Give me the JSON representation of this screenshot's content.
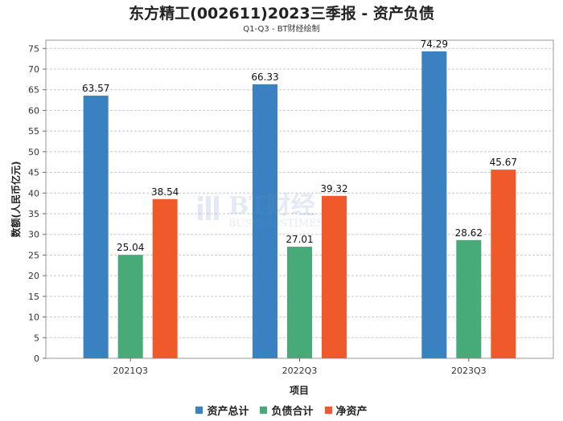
{
  "chart_data": {
    "type": "bar",
    "title": "东方精工(002611)2023三季报 - 资产负债",
    "subtitle": "Q1-Q3 - BT财经绘制",
    "xlabel": "项目",
    "ylabel": "数额(人民币亿元)",
    "categories": [
      "2021Q3",
      "2022Q3",
      "2023Q3"
    ],
    "ylim": [
      0,
      77
    ],
    "yticks": [
      0,
      5,
      10,
      15,
      20,
      25,
      30,
      35,
      40,
      45,
      50,
      55,
      60,
      65,
      70,
      75
    ],
    "grid": true,
    "legend_position": "bottom",
    "series": [
      {
        "name": "资产总计",
        "color": "#3a81c1",
        "values": [
          63.57,
          66.33,
          74.29
        ],
        "labels": [
          "63.57",
          "66.33",
          "74.29"
        ]
      },
      {
        "name": "负债合计",
        "color": "#47ab79",
        "values": [
          25.04,
          27.01,
          28.62
        ],
        "labels": [
          "25.04",
          "27.01",
          "28.62"
        ]
      },
      {
        "name": "净资产",
        "color": "#f05a2a",
        "values": [
          38.54,
          39.32,
          45.67
        ],
        "labels": [
          "38.54",
          "39.32",
          "45.67"
        ]
      }
    ]
  },
  "watermark": {
    "text": "BT财经",
    "subtext": "BUSINESSTIMES"
  }
}
